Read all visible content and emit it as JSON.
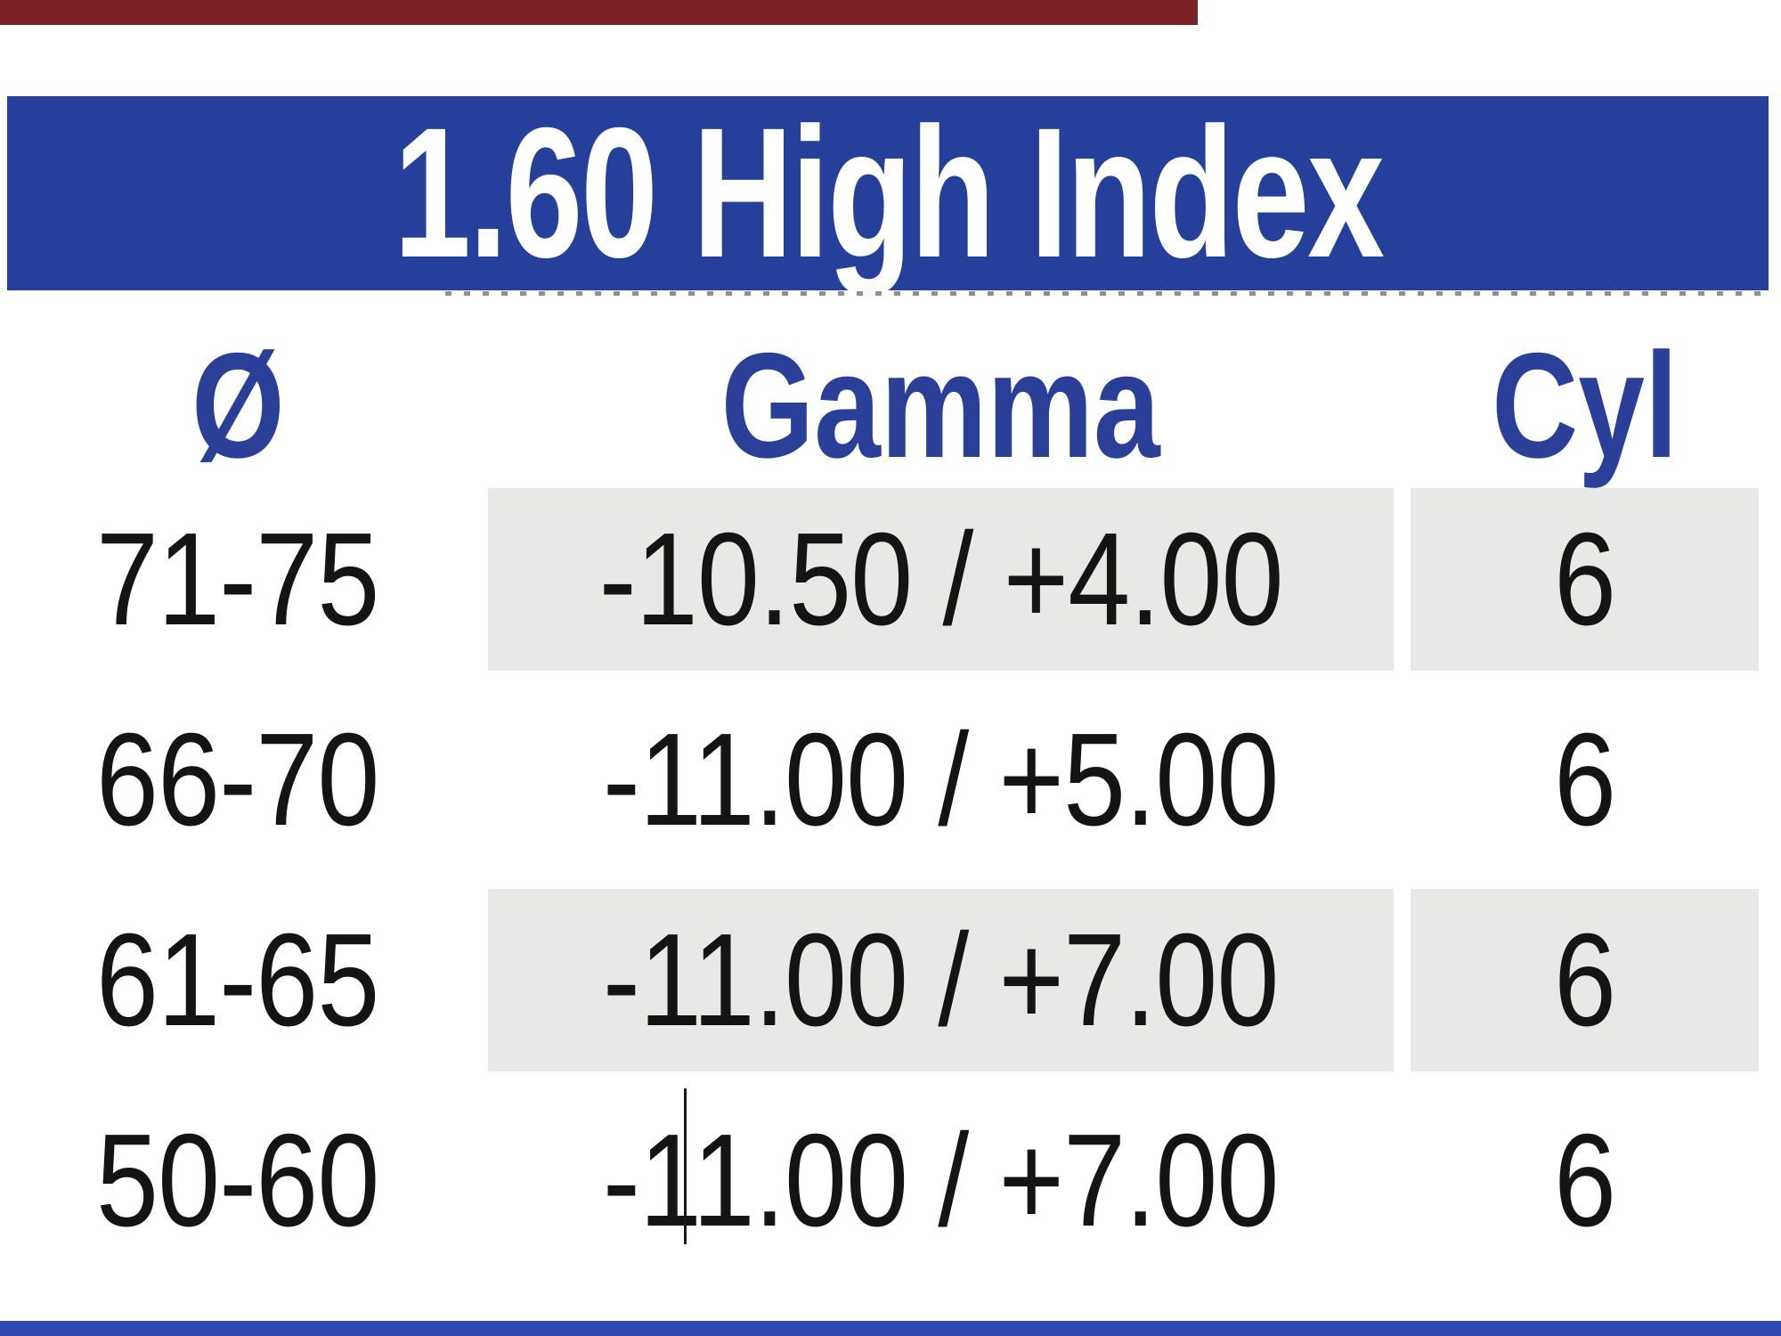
{
  "header": {
    "title": "1.60 High Index"
  },
  "columns": [
    {
      "label": "Ø"
    },
    {
      "label": "Gamma"
    },
    {
      "label": "Cyl"
    }
  ],
  "rows": [
    {
      "diameter": "71-75",
      "gamma": "-10.50 / +4.00",
      "cyl": "6",
      "shaded": true,
      "text_cursor": false
    },
    {
      "diameter": "66-70",
      "gamma": "-11.00 / +5.00",
      "cyl": "6",
      "shaded": false,
      "text_cursor": false
    },
    {
      "diameter": "61-65",
      "gamma": "-11.00 / +7.00",
      "cyl": "6",
      "shaded": true,
      "text_cursor": false
    },
    {
      "diameter": "50-60",
      "gamma": "-11.00 / +7.00",
      "cyl": "6",
      "shaded": false,
      "text_cursor": true
    }
  ],
  "colors": {
    "header_band": "#24409a",
    "header_text": "#ffffff",
    "column_header_text": "#2a3f98",
    "row_text": "#141414",
    "row_shade": "#e8e8e7",
    "top_strip": "#7b2023",
    "bottom_strip": "#2e4bb1",
    "caret": "#1a1a1a"
  }
}
